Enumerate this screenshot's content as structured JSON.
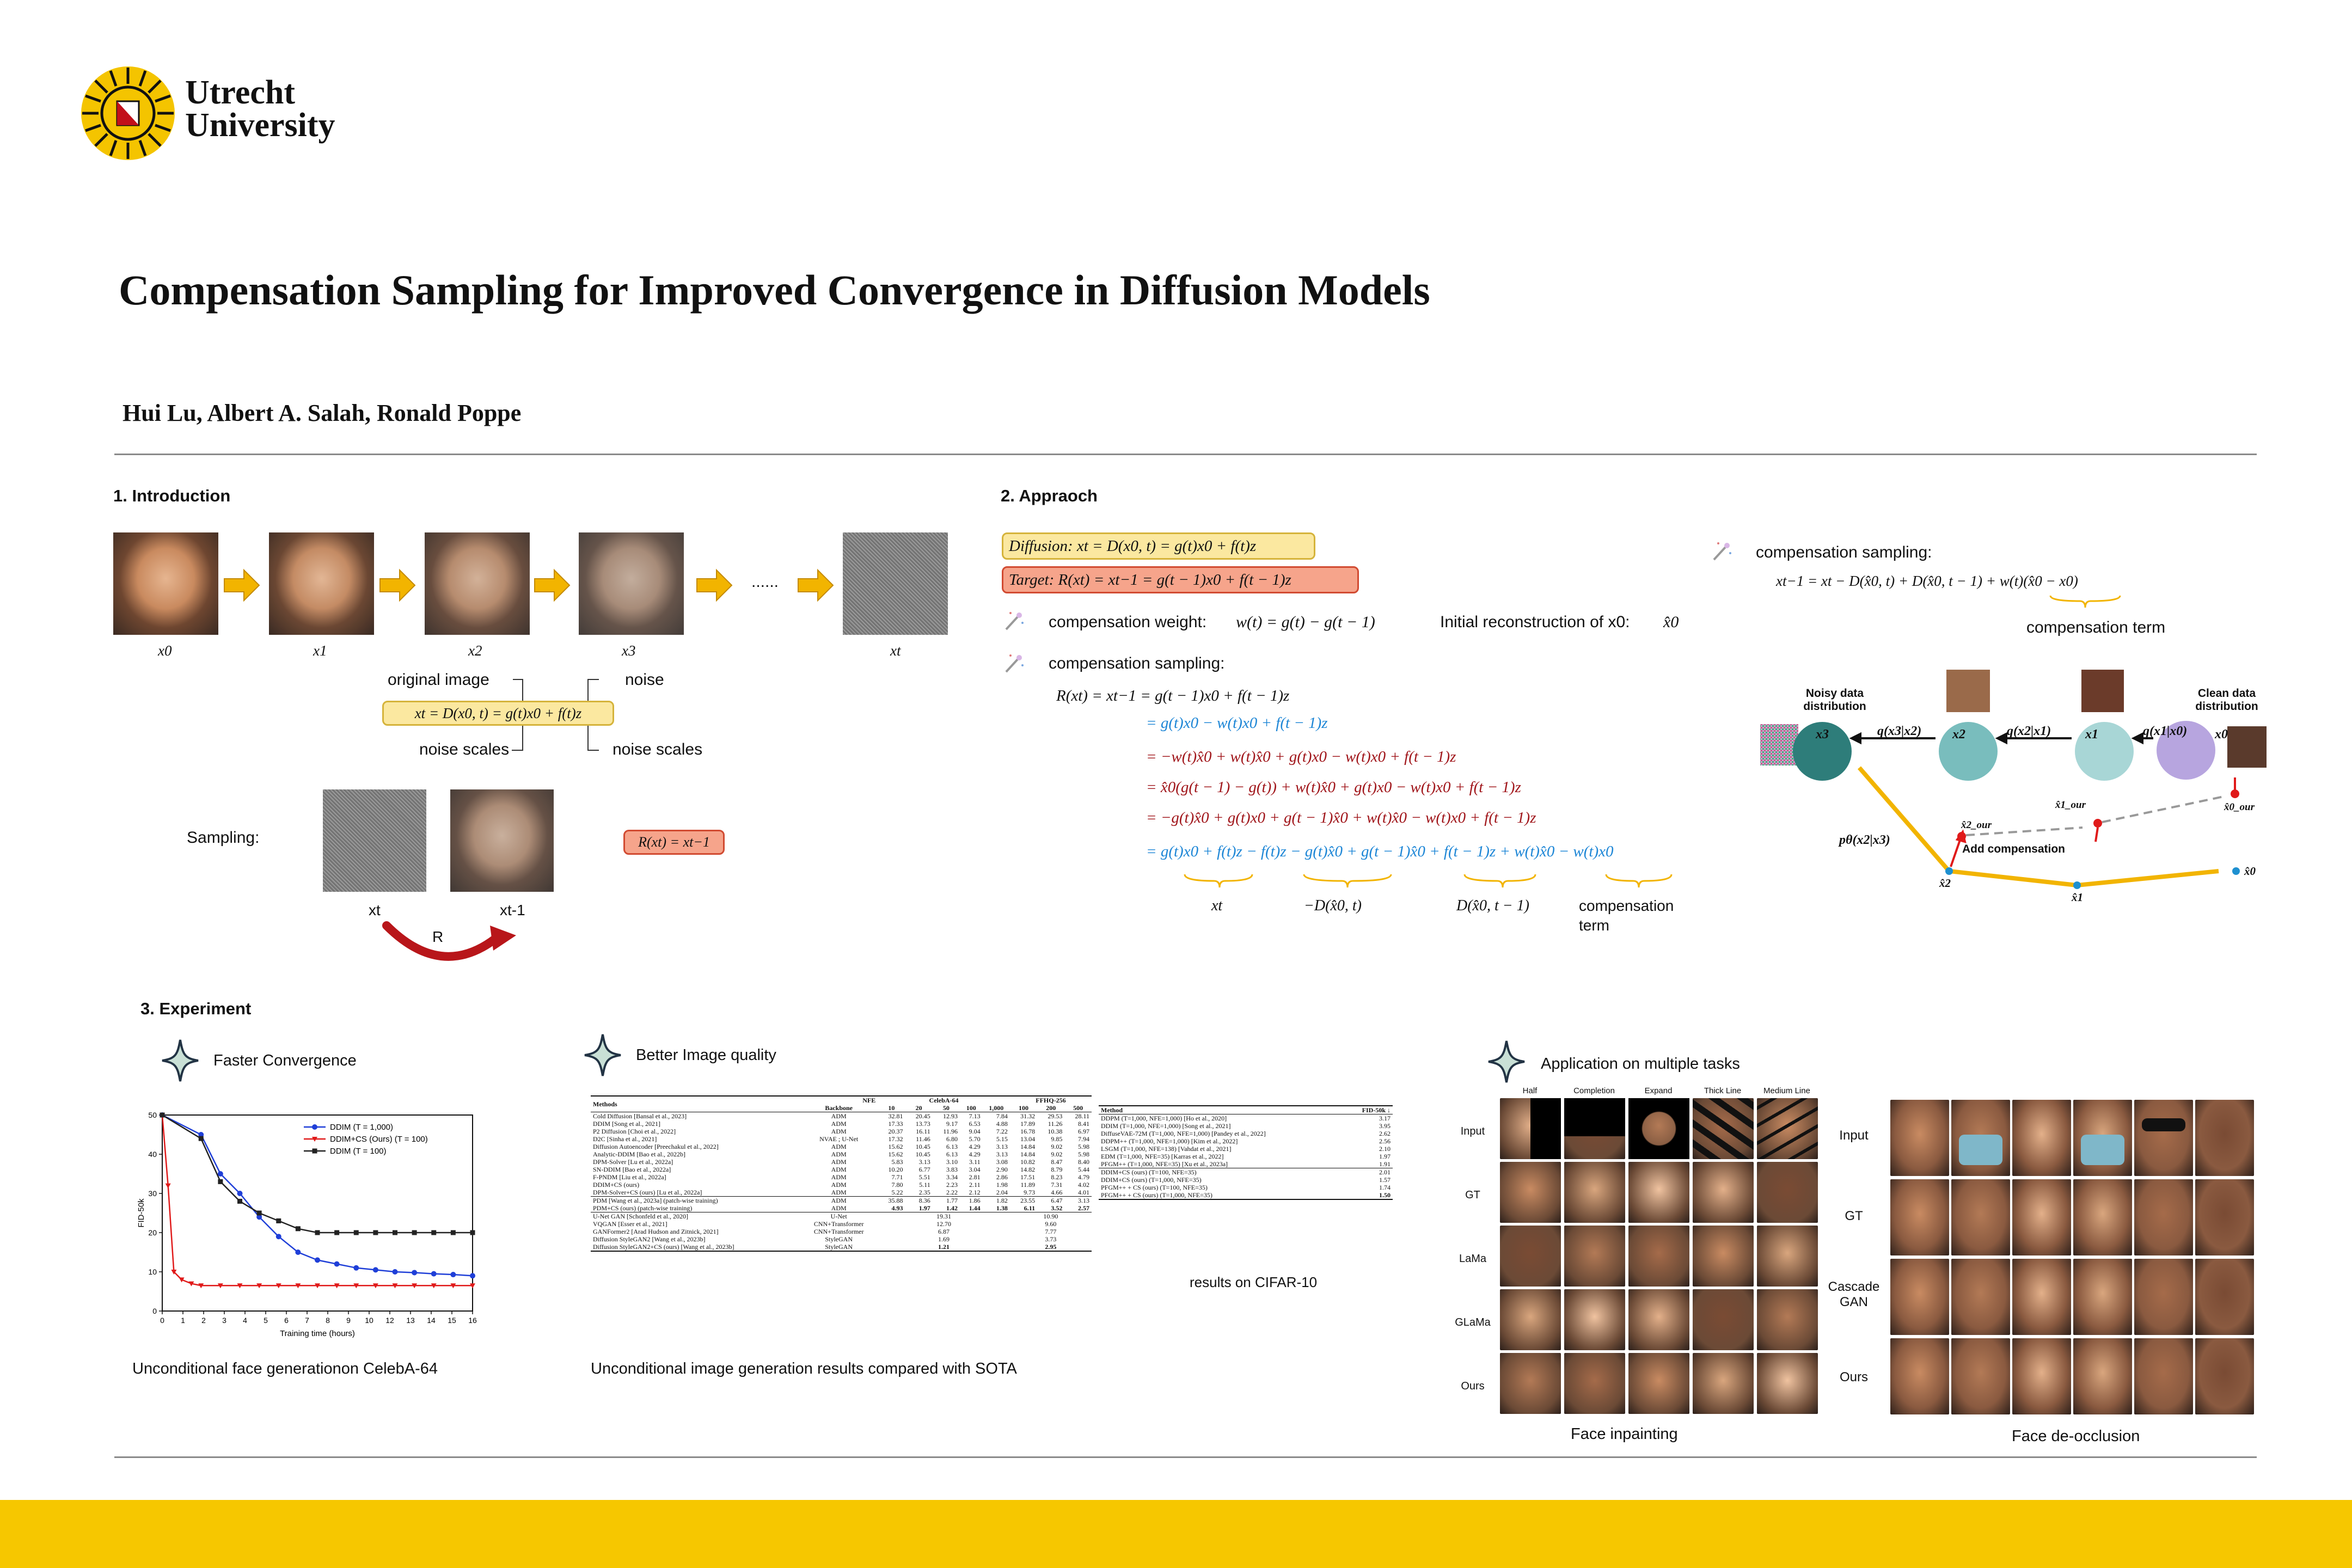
{
  "header": {
    "university_line1": "Utrecht",
    "university_line2": "University",
    "title": "Compensation Sampling for Improved Convergence in Diffusion Models",
    "authors": "Hui Lu, Albert A. Salah, Ronald Poppe"
  },
  "intro": {
    "heading": "1. Introduction",
    "frame_labels": [
      "x0",
      "x1",
      "x2",
      "x3",
      "xt"
    ],
    "dots": "......",
    "original_image": "original image",
    "noise": "noise",
    "equation": "xt = D(x0, t) = g(t)x0 + f(t)z",
    "noise_scales_left": "noise scales",
    "noise_scales_right": "noise scales",
    "sampling": "Sampling:",
    "xt": "xt",
    "xt1": "xt-1",
    "r": "R",
    "r_eq": "R(xt) = xt−1"
  },
  "approach": {
    "heading": "2. Appraoch",
    "diffusion_eq": "Diffusion: xt = D(x0, t) = g(t)x0 + f(t)z",
    "target_eq": "Target:  R(xt) = xt−1 = g(t − 1)x0 + f(t − 1)z",
    "comp_weight_label": "compensation weight:",
    "comp_weight_eq": "w(t) = g(t) − g(t − 1)",
    "initial_recon_label": "Initial reconstruction of x0:",
    "initial_recon_sym": "x̂0",
    "comp_sampling_label": "compensation sampling:",
    "derivation": [
      "R(xt) = xt−1 = g(t − 1)x0 + f(t − 1)z",
      "= g(t)x0 − w(t)x0 + f(t − 1)z",
      "= −w(t)x̂0 + w(t)x̂0 + g(t)x0 − w(t)x0 + f(t − 1)z",
      "= x̂0(g(t − 1) − g(t)) + w(t)x̂0 + g(t)x0 − w(t)x0 + f(t − 1)z",
      "= −g(t)x̂0 + g(t)x0 + g(t − 1)x̂0 + w(t)x̂0 − w(t)x0 + f(t − 1)z",
      "= g(t)x0 + f(t)z − f(t)z − g(t)x̂0 + g(t − 1)x̂0 + f(t − 1)z + w(t)x̂0 − w(t)x0"
    ],
    "brace_labels": [
      "xt",
      "−D(x̂0, t)",
      "D(x̂0, t − 1)",
      "compensation",
      "term"
    ],
    "right_label": "compensation sampling:",
    "right_eq": "xt−1 = xt − D(x̂0, t) + D(x̂0, t − 1) + w(t)(x̂0 − x0)",
    "comp_term": "compensation term",
    "diagram": {
      "noisy": "Noisy data distribution",
      "clean": "Clean data distribution",
      "nodes": [
        "x3",
        "x2",
        "x1",
        "x0"
      ],
      "q_labels": [
        "q(x3|x2)",
        "q(x2|x1)",
        "q(x1|x0)"
      ],
      "p_label": "pθ(x2|x3)",
      "add_comp": "Add compensation",
      "our_labels": [
        "x̂2_our",
        "x̂1_our",
        "x̂0_our"
      ],
      "hat_labels": [
        "x̂2",
        "x̂1",
        "x̂0"
      ]
    }
  },
  "experiment": {
    "heading": "3. Experiment",
    "faster": "Faster Convergence",
    "better": "Better Image quality",
    "application": "Application on multiple tasks",
    "caption_left": "Unconditional face generationon CelebA-64",
    "caption_mid": "Unconditional image generation results compared with SOTA",
    "cifar_caption": "results on CIFAR-10",
    "inpaint_caption": "Face inpainting",
    "deocc_caption": "Face de-occlusion",
    "inpaint_cols": [
      "Half",
      "Completion",
      "Expand",
      "Thick Line",
      "Medium Line"
    ],
    "inpaint_rows": [
      "Input",
      "GT",
      "LaMa",
      "GLaMa",
      "Ours"
    ],
    "deocc_rows": [
      "Input",
      "GT",
      "Cascade GAN",
      "Ours"
    ]
  },
  "chart_data": {
    "type": "line",
    "xlabel": "Training time (hours)",
    "ylabel": "FID-50k",
    "xlim": [
      0,
      16
    ],
    "ylim": [
      0,
      50
    ],
    "xticks": [
      "0",
      "1",
      "2",
      "3",
      "4",
      "5",
      "6",
      "7",
      "8",
      "9",
      "10",
      "12",
      "13",
      "14",
      "15",
      "16"
    ],
    "yticks": [
      "0",
      "10",
      "20",
      "30",
      "40",
      "50"
    ],
    "legend": "top-right",
    "series": [
      {
        "name": "DDIM (T = 1,000)",
        "color": "#1f3fd8",
        "marker": "circle",
        "x": [
          0,
          2,
          3,
          4,
          5,
          6,
          7,
          8,
          9,
          10,
          11,
          12,
          13,
          14,
          15,
          16
        ],
        "y": [
          50,
          45,
          35,
          30,
          24,
          19,
          15,
          13,
          12,
          11,
          10.5,
          10,
          9.8,
          9.5,
          9.3,
          9
        ]
      },
      {
        "name": "DDIM+CS (Ours) (T = 100)",
        "color": "#e01a1a",
        "marker": "triangle",
        "x": [
          0,
          0.3,
          0.6,
          1,
          1.5,
          2,
          3,
          4,
          5,
          6,
          7,
          8,
          9,
          10,
          11,
          12,
          13,
          14,
          15,
          16
        ],
        "y": [
          50,
          32,
          10,
          8,
          7,
          6.5,
          6.5,
          6.5,
          6.5,
          6.5,
          6.5,
          6.5,
          6.5,
          6.5,
          6.5,
          6.5,
          6.5,
          6.5,
          6.5,
          6.5
        ]
      },
      {
        "name": "DDIM (T = 100)",
        "color": "#222222",
        "marker": "square",
        "x": [
          0,
          2,
          3,
          4,
          5,
          6,
          7,
          8,
          9,
          10,
          11,
          12,
          13,
          14,
          15,
          16
        ],
        "y": [
          50,
          44,
          33,
          28,
          25,
          23,
          21,
          20,
          20,
          20,
          20,
          20,
          20,
          20,
          20,
          20
        ]
      }
    ]
  },
  "tables": {
    "main_header": {
      "methods": "Methods",
      "nfe": "NFE",
      "backbone": "Backbone",
      "celeba": "CelebA-64",
      "ffhq": "FFHQ-256",
      "cols": [
        "10",
        "20",
        "50",
        "100",
        "1,000",
        "100",
        "200",
        "500"
      ]
    },
    "main_rows": [
      [
        "Cold Diffusion [Bansal et al., 2023]",
        "ADM",
        "32.81",
        "20.45",
        "12.93",
        "7.13",
        "7.84",
        "31.32",
        "29.53",
        "28.11"
      ],
      [
        "DDIM [Song et al., 2021]",
        "ADM",
        "17.33",
        "13.73",
        "9.17",
        "6.53",
        "4.88",
        "17.89",
        "11.26",
        "8.41"
      ],
      [
        "P2 Diffusion [Choi et al., 2022]",
        "ADM",
        "20.37",
        "16.11",
        "11.96",
        "9.04",
        "7.22",
        "16.78",
        "10.38",
        "6.97"
      ],
      [
        "D2C [Sinha et al., 2021]",
        "NVAE ; U-Net",
        "17.32",
        "11.46",
        "6.80",
        "5.70",
        "5.15",
        "13.04",
        "9.85",
        "7.94"
      ],
      [
        "Diffusion Autoencoder [Preechakul et al., 2022]",
        "ADM",
        "15.62",
        "10.45",
        "6.13",
        "4.29",
        "3.13",
        "14.84",
        "9.02",
        "5.98"
      ],
      [
        "Analytic-DDIM [Bao et al., 2022b]",
        "ADM",
        "15.62",
        "10.45",
        "6.13",
        "4.29",
        "3.13",
        "14.84",
        "9.02",
        "5.98"
      ],
      [
        "DPM-Solver [Lu et al., 2022a]",
        "ADM",
        "5.83",
        "3.13",
        "3.10",
        "3.11",
        "3.08",
        "10.82",
        "8.47",
        "8.40"
      ],
      [
        "SN-DDIM [Bao et al., 2022a]",
        "ADM",
        "10.20",
        "6.77",
        "3.83",
        "3.04",
        "2.90",
        "14.82",
        "8.79",
        "5.44"
      ],
      [
        "F-PNDM [Liu et al., 2022a]",
        "ADM",
        "7.71",
        "5.51",
        "3.34",
        "2.81",
        "2.86",
        "17.51",
        "8.23",
        "4.79"
      ],
      [
        "DDIM+CS (ours)",
        "ADM",
        "7.80",
        "5.11",
        "2.23",
        "2.11",
        "1.98",
        "11.89",
        "7.31",
        "4.02"
      ],
      [
        "DPM-Solver+CS (ours) [Lu et al., 2022a]",
        "ADM",
        "5.22",
        "2.35",
        "2.22",
        "2.12",
        "2.04",
        "9.73",
        "4.66",
        "4.01"
      ],
      [
        "PDM [Wang et al., 2023a] (patch-wise training)",
        "ADM",
        "35.88",
        "8.36",
        "1.77",
        "1.86",
        "1.82",
        "23.55",
        "6.47",
        "3.13"
      ],
      [
        "PDM+CS (ours) (patch-wise training)",
        "ADM",
        "4.93",
        "1.97",
        "1.42",
        "1.44",
        "1.38",
        "6.11",
        "3.52",
        "2.57"
      ]
    ],
    "gan_rows": [
      [
        "U-Net GAN [Schonfeld et al., 2020]",
        "U-Net",
        "19.31",
        "10.90"
      ],
      [
        "VQGAN [Esser et al., 2021]",
        "CNN+Transformer",
        "12.70",
        "9.60"
      ],
      [
        "GANFormer2 [Arad Hudson and Zitnick, 2021]",
        "CNN+Transformer",
        "6.87",
        "7.77"
      ],
      [
        "Diffusion StyleGAN2 [Wang et al., 2023b]",
        "StyleGAN",
        "1.69",
        "3.73"
      ],
      [
        "Diffusion StyleGAN2+CS (ours) [Wang et al., 2023b]",
        "StyleGAN",
        "1.21",
        "2.95"
      ]
    ],
    "cifar_header": {
      "method": "Method",
      "fid": "FID-50k ↓"
    },
    "cifar_rows": [
      [
        "DDPM (T=1,000, NFE=1,000) [Ho et al., 2020]",
        "3.17"
      ],
      [
        "DDIM (T=1,000, NFE=1,000) [Song et al., 2021]",
        "3.95"
      ],
      [
        "DiffuseVAE-72M (T=1,000, NFE=1,000) [Pandey et al., 2022]",
        "2.62"
      ],
      [
        "DDPM++ (T=1,000, NFE=1,000) [Kim et al., 2022]",
        "2.56"
      ],
      [
        "LSGM (T=1,000, NFE=138) [Vahdat et al., 2021]",
        "2.10"
      ],
      [
        "EDM (T=1,000, NFE=35) [Karras et al., 2022]",
        "1.97"
      ],
      [
        "PFGM++ (T=1,000, NFE=35) [Xu et al., 2023a]",
        "1.91"
      ],
      [
        "DDIM+CS (ours) (T=100, NFE=35)",
        "2.01"
      ],
      [
        "DDIM+CS (ours) (T=1,000, NFE=35)",
        "1.57"
      ],
      [
        "PFGM++ + CS (ours) (T=100, NFE=35)",
        "1.74"
      ],
      [
        "PFGM++ + CS (ours) (T=1,000, NFE=35)",
        "1.50"
      ]
    ]
  },
  "colors": {
    "accent_yellow": "#f6c700",
    "diff_box": "#fbe8a0",
    "target_box": "#f6a48b",
    "blue_math": "#1d86d6",
    "red_math": "#e02020"
  }
}
